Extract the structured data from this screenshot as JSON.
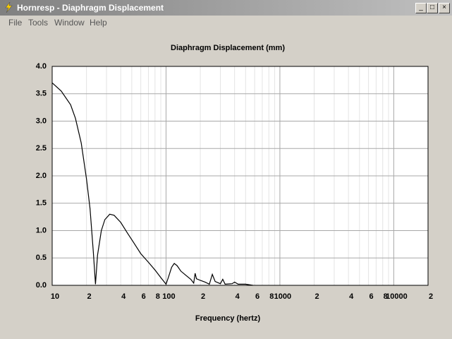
{
  "window": {
    "title": "Hornresp - Diaphragm Displacement",
    "menu": [
      "File",
      "Tools",
      "Window",
      "Help"
    ]
  },
  "chart_data": {
    "type": "line",
    "title": "Diaphragm Displacement (mm)",
    "x_label": "Frequency (hertz)",
    "xscale": "log",
    "grid": true,
    "xlim": [
      10,
      20000
    ],
    "xticks": [
      10,
      {
        "value": 20,
        "label": "2"
      },
      {
        "value": 40,
        "label": "4"
      },
      {
        "value": 60,
        "label": "6"
      },
      {
        "value": 80,
        "label": "8"
      },
      100,
      {
        "value": 200,
        "label": "2"
      },
      {
        "value": 400,
        "label": "4"
      },
      {
        "value": 600,
        "label": "6"
      },
      {
        "value": 800,
        "label": "8"
      },
      1000,
      {
        "value": 2000,
        "label": "2"
      },
      {
        "value": 4000,
        "label": "4"
      },
      {
        "value": 6000,
        "label": "6"
      },
      {
        "value": 8000,
        "label": "8"
      },
      10000,
      {
        "value": 20000,
        "label": "2"
      }
    ],
    "xminorticks": [
      30,
      50,
      70,
      90,
      300,
      500,
      700,
      900,
      3000,
      5000,
      7000,
      9000
    ],
    "ylim": [
      0,
      4
    ],
    "yticks": [
      {
        "value": 0,
        "label": "0.0"
      },
      {
        "value": 0.5,
        "label": "0.5"
      },
      {
        "value": 1,
        "label": "1.0"
      },
      {
        "value": 1.5,
        "label": "1.5"
      },
      {
        "value": 2,
        "label": "2.0"
      },
      {
        "value": 2.5,
        "label": "2.5"
      },
      {
        "value": 3,
        "label": "3.0"
      },
      {
        "value": 3.5,
        "label": "3.5"
      },
      {
        "value": 4,
        "label": "4.0"
      }
    ],
    "series": [
      {
        "color": "#000000",
        "x": [
          10,
          12,
          14.5,
          16,
          18,
          20,
          21.5,
          23,
          24,
          25,
          27,
          29,
          32,
          35,
          40,
          46,
          52,
          60,
          70,
          80,
          90,
          100,
          105,
          112,
          118,
          125,
          135,
          150,
          165,
          175,
          180,
          185,
          200,
          220,
          240,
          255,
          270,
          300,
          315,
          330,
          380,
          400,
          430,
          500,
          580
        ],
        "values": [
          3.7,
          3.55,
          3.3,
          3.05,
          2.6,
          1.95,
          1.4,
          0.6,
          0.02,
          0.55,
          1.0,
          1.2,
          1.3,
          1.28,
          1.15,
          0.95,
          0.78,
          0.58,
          0.42,
          0.28,
          0.14,
          0.02,
          0.15,
          0.33,
          0.4,
          0.36,
          0.26,
          0.18,
          0.11,
          0.04,
          0.22,
          0.12,
          0.09,
          0.06,
          0.02,
          0.2,
          0.07,
          0.03,
          0.11,
          0.02,
          0.03,
          0.06,
          0.02,
          0.02,
          0
        ]
      }
    ]
  }
}
